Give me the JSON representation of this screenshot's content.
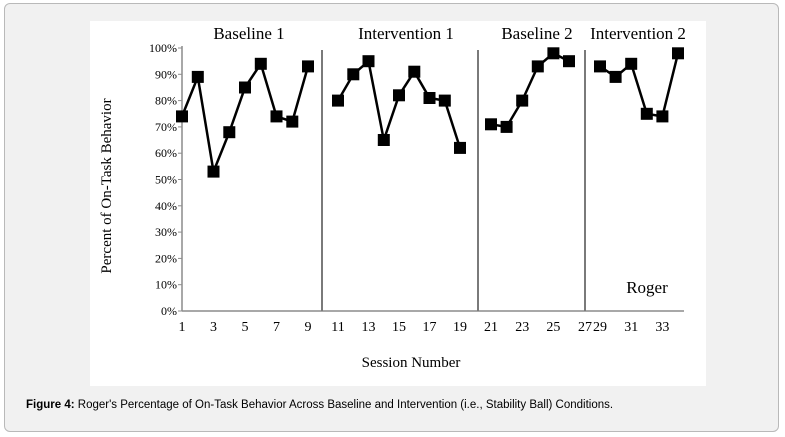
{
  "chart_data": {
    "type": "line",
    "ylabel": "Percent of On-Task Behavior",
    "xlabel": "Session Number",
    "ylim": [
      0,
      100
    ],
    "y_ticks": [
      "0%",
      "10%",
      "20%",
      "30%",
      "40%",
      "50%",
      "60%",
      "70%",
      "80%",
      "90%",
      "100%"
    ],
    "annotation": "Roger",
    "phases": [
      {
        "name": "Baseline 1",
        "x_ticks": [
          "1",
          "3",
          "5",
          "7",
          "9"
        ],
        "values": [
          74,
          89,
          53,
          68,
          85,
          94,
          74,
          72,
          93
        ]
      },
      {
        "name": "Intervention 1",
        "x_ticks": [
          "11",
          "13",
          "15",
          "17",
          "19"
        ],
        "values": [
          80,
          90,
          95,
          65,
          82,
          91,
          81,
          80,
          62
        ]
      },
      {
        "name": "Baseline 2",
        "x_ticks": [
          "21",
          "23",
          "25",
          "27"
        ],
        "values": [
          71,
          70,
          80,
          93,
          98,
          95
        ]
      },
      {
        "name": "Intervention 2",
        "x_ticks": [
          "29",
          "31",
          "33"
        ],
        "values": [
          93,
          89,
          94,
          75,
          74,
          98
        ]
      }
    ]
  },
  "caption": {
    "label": "Figure 4:",
    "text": " Roger's Percentage of On-Task Behavior Across Baseline and Intervention (i.e., Stability Ball) Conditions."
  }
}
